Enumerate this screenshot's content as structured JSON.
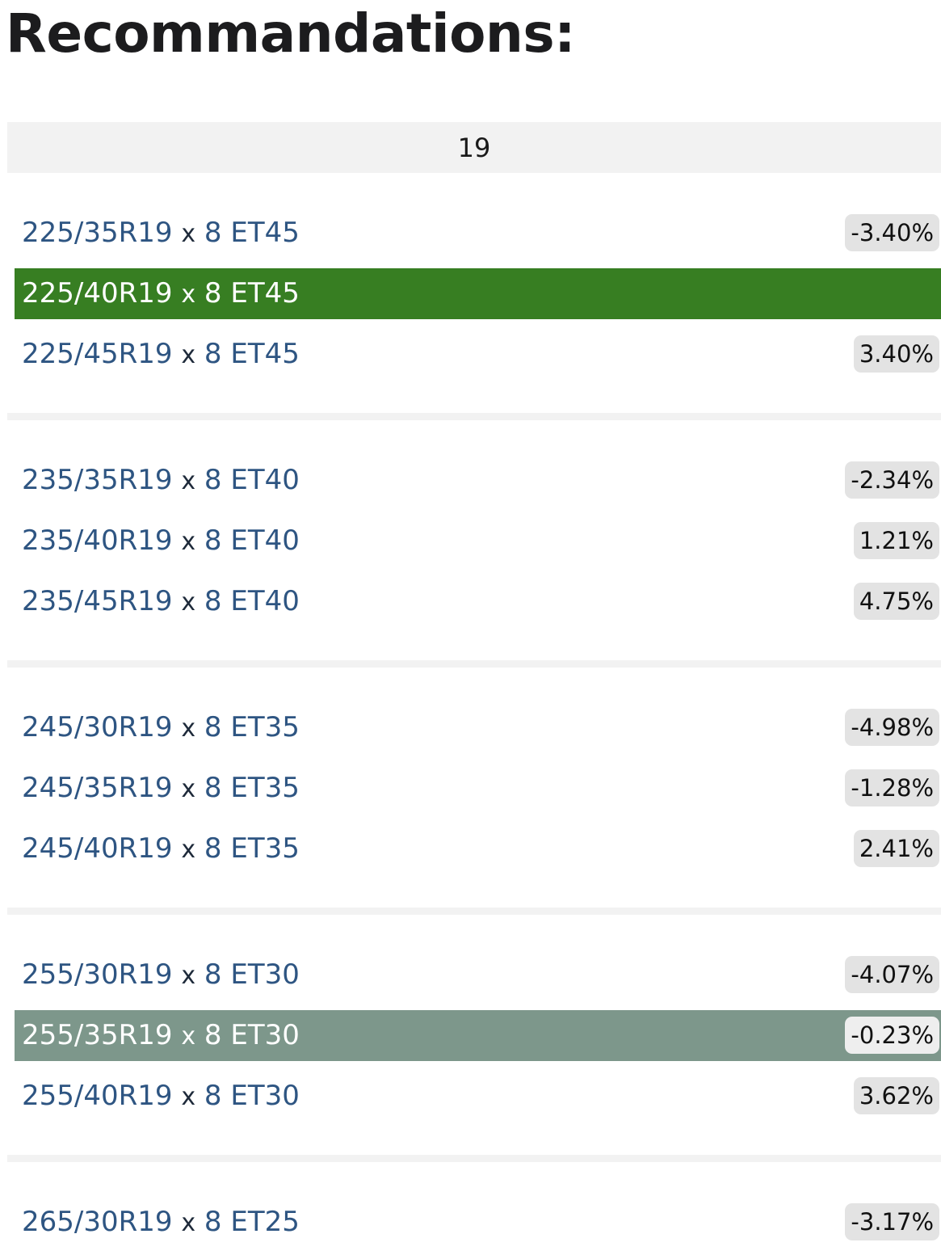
{
  "title": "Recommandations:",
  "group_header": "19",
  "colors": {
    "link": "#2e5582",
    "current_row": "#377e22",
    "closest_row": "#7d978b",
    "badge": "#e3e3e3"
  },
  "groups": [
    {
      "rows": [
        {
          "size": "225/35R19",
          "x": "x",
          "rim": "8 ET45",
          "diff": "-3.40%",
          "highlight": ""
        },
        {
          "size": "225/40R19",
          "x": "x",
          "rim": "8 ET45",
          "diff": "",
          "highlight": "green"
        },
        {
          "size": "225/45R19",
          "x": "x",
          "rim": "8 ET45",
          "diff": "3.40%",
          "highlight": ""
        }
      ]
    },
    {
      "rows": [
        {
          "size": "235/35R19",
          "x": "x",
          "rim": "8 ET40",
          "diff": "-2.34%",
          "highlight": ""
        },
        {
          "size": "235/40R19",
          "x": "x",
          "rim": "8 ET40",
          "diff": "1.21%",
          "highlight": ""
        },
        {
          "size": "235/45R19",
          "x": "x",
          "rim": "8 ET40",
          "diff": "4.75%",
          "highlight": ""
        }
      ]
    },
    {
      "rows": [
        {
          "size": "245/30R19",
          "x": "x",
          "rim": "8 ET35",
          "diff": "-4.98%",
          "highlight": ""
        },
        {
          "size": "245/35R19",
          "x": "x",
          "rim": "8 ET35",
          "diff": "-1.28%",
          "highlight": ""
        },
        {
          "size": "245/40R19",
          "x": "x",
          "rim": "8 ET35",
          "diff": "2.41%",
          "highlight": ""
        }
      ]
    },
    {
      "rows": [
        {
          "size": "255/30R19",
          "x": "x",
          "rim": "8 ET30",
          "diff": "-4.07%",
          "highlight": ""
        },
        {
          "size": "255/35R19",
          "x": "x",
          "rim": "8 ET30",
          "diff": "-0.23%",
          "highlight": "gray"
        },
        {
          "size": "255/40R19",
          "x": "x",
          "rim": "8 ET30",
          "diff": "3.62%",
          "highlight": ""
        }
      ]
    },
    {
      "rows": [
        {
          "size": "265/30R19",
          "x": "x",
          "rim": "8 ET25",
          "diff": "-3.17%",
          "highlight": ""
        }
      ]
    }
  ]
}
